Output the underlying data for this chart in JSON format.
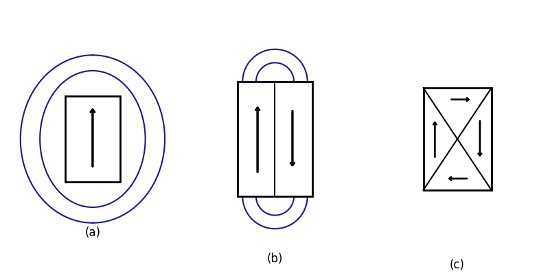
{
  "fig_width": 8.01,
  "fig_height": 4.05,
  "dpi": 100,
  "bg_color": "#ffffff",
  "blue_color": "#1a1a8c",
  "black_color": "#000000",
  "label_a": "(a)",
  "label_b": "(b)",
  "label_c": "(c)"
}
